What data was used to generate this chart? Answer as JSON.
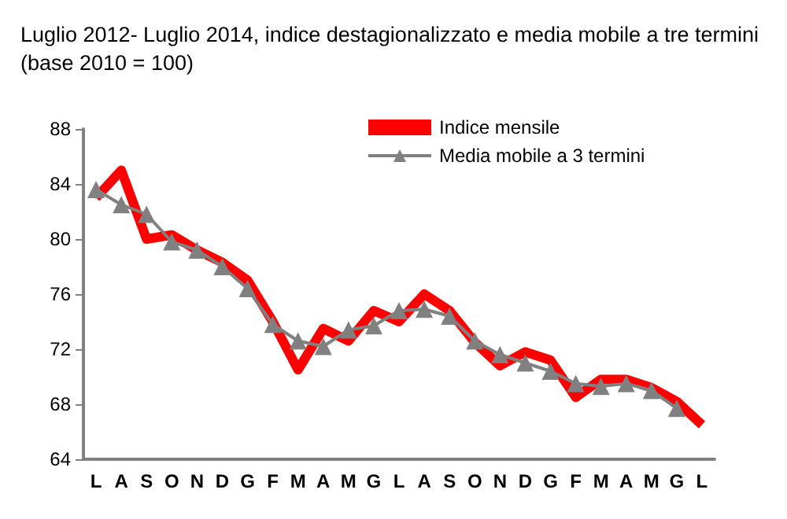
{
  "chart_data": {
    "type": "line",
    "title": "Luglio 2012- Luglio 2014, indice destagionalizzato e media mobile a tre termini (base 2010 = 100)",
    "categories": [
      "L",
      "A",
      "S",
      "O",
      "N",
      "D",
      "G",
      "F",
      "M",
      "A",
      "M",
      "G",
      "L",
      "A",
      "S",
      "O",
      "N",
      "D",
      "G",
      "F",
      "M",
      "A",
      "M",
      "G",
      "L"
    ],
    "series": [
      {
        "name": "Indice mensile",
        "color": "#ff0000",
        "marker": "none",
        "values": [
          83,
          85,
          80,
          80.3,
          79.2,
          78.3,
          77,
          74,
          70.5,
          73.5,
          72.6,
          74.8,
          74,
          76,
          74.8,
          72.5,
          70.8,
          71.8,
          71.2,
          68.5,
          69.8,
          69.8,
          69.2,
          68.2,
          66.5
        ]
      },
      {
        "name": "Media mobile a 3 termini",
        "color": "#808080",
        "marker": "triangle",
        "values": [
          83.6,
          82.5,
          81.8,
          79.8,
          79.2,
          78,
          76.4,
          73.8,
          72.6,
          72.2,
          73.4,
          73.7,
          74.8,
          74.9,
          74.4,
          72.6,
          71.6,
          71,
          70.4,
          69.5,
          69.3,
          69.5,
          69,
          67.7,
          null
        ]
      }
    ],
    "ylim": [
      64,
      88
    ],
    "yticks": [
      64,
      68,
      72,
      76,
      80,
      84,
      88
    ],
    "grid": false,
    "legend": "top right"
  }
}
